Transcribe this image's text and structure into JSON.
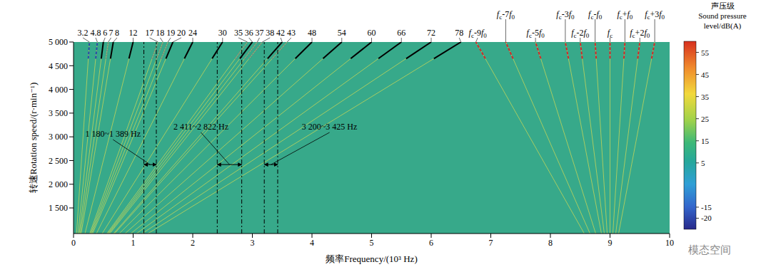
{
  "chart_data": {
    "type": "line",
    "x_label": "频率Frequency/(10³ Hz)",
    "y_label": "转速Rotation speed/(r·min⁻¹)",
    "xlim": [
      0,
      10
    ],
    "xticks": [
      0,
      1,
      2,
      3,
      4,
      5,
      6,
      7,
      8,
      9,
      10
    ],
    "ylim": [
      960,
      5000
    ],
    "yticks": [
      {
        "value": 1500,
        "label": "1 500"
      },
      {
        "value": 2000,
        "label": "2 000"
      },
      {
        "value": 2500,
        "label": "2 500"
      },
      {
        "value": 3000,
        "label": "3 000"
      },
      {
        "value": 3500,
        "label": "3 500"
      },
      {
        "value": 4000,
        "label": "4 000"
      },
      {
        "value": 4500,
        "label": "4 500"
      },
      {
        "value": 5000,
        "label": "5 000"
      }
    ],
    "grid": false,
    "series": [
      {
        "name": "3.2",
        "color": "#2b4ba8",
        "line_style": "dashed",
        "x": [
          0.051,
          0.248,
          0.267
        ],
        "values": [
          960,
          4650,
          5000
        ]
      },
      {
        "name": "4.8",
        "color": "#2b4ba8",
        "line_style": "dashed",
        "x": [
          0.077,
          0.372,
          0.4
        ],
        "values": [
          960,
          4650,
          5000
        ]
      },
      {
        "name": "6",
        "color": "#000000",
        "line_style": "solid",
        "x": [
          0.096,
          0.465,
          0.5
        ],
        "values": [
          960,
          4650,
          5000
        ]
      },
      {
        "name": "7",
        "color": "#7f7f7f",
        "line_style": "dotted",
        "x": [
          0.112,
          0.543,
          0.583
        ],
        "values": [
          960,
          4650,
          5000
        ]
      },
      {
        "name": "8",
        "color": "#000000",
        "line_style": "solid",
        "x": [
          0.128,
          0.62,
          0.667
        ],
        "values": [
          960,
          4650,
          5000
        ]
      },
      {
        "name": "12",
        "color": "#000000",
        "line_style": "solid",
        "x": [
          0.192,
          0.93,
          1.0
        ],
        "values": [
          960,
          4650,
          5000
        ]
      },
      {
        "name": "17",
        "color": "#7f7f7f",
        "line_style": "dotted",
        "x": [
          0.272,
          1.318,
          1.417
        ],
        "values": [
          960,
          4650,
          5000
        ]
      },
      {
        "name": "18",
        "color": "#7f7f7f",
        "line_style": "dotted",
        "x": [
          0.288,
          1.395,
          1.5
        ],
        "values": [
          960,
          4650,
          5000
        ]
      },
      {
        "name": "19",
        "color": "#7f7f7f",
        "line_style": "dotted",
        "x": [
          0.304,
          1.473,
          1.583
        ],
        "values": [
          960,
          4650,
          5000
        ]
      },
      {
        "name": "20",
        "color": "#000000",
        "line_style": "solid",
        "x": [
          0.32,
          1.55,
          1.667
        ],
        "values": [
          960,
          4650,
          5000
        ]
      },
      {
        "name": "24",
        "color": "#000000",
        "line_style": "solid",
        "x": [
          0.384,
          1.86,
          2.0
        ],
        "values": [
          960,
          4650,
          5000
        ]
      },
      {
        "name": "30",
        "color": "#000000",
        "line_style": "solid",
        "x": [
          0.48,
          2.325,
          2.5
        ],
        "values": [
          960,
          4650,
          5000
        ]
      },
      {
        "name": "35",
        "color": "#7f7f7f",
        "line_style": "dotted",
        "x": [
          0.56,
          2.713,
          2.917
        ],
        "values": [
          960,
          4650,
          5000
        ]
      },
      {
        "name": "36",
        "color": "#000000",
        "line_style": "solid",
        "x": [
          0.576,
          2.79,
          3.0
        ],
        "values": [
          960,
          4650,
          5000
        ]
      },
      {
        "name": "37",
        "color": "#7f7f7f",
        "line_style": "dotted",
        "x": [
          0.592,
          2.868,
          3.083
        ],
        "values": [
          960,
          4650,
          5000
        ]
      },
      {
        "name": "38",
        "color": "#7f7f7f",
        "line_style": "dotted",
        "x": [
          0.608,
          2.945,
          3.167
        ],
        "values": [
          960,
          4650,
          5000
        ]
      },
      {
        "name": "42",
        "color": "#000000",
        "line_style": "solid",
        "x": [
          0.672,
          3.255,
          3.5
        ],
        "values": [
          960,
          4650,
          5000
        ]
      },
      {
        "name": "43",
        "color": "#7f7f7f",
        "line_style": "dotted",
        "x": [
          0.688,
          3.333,
          3.583
        ],
        "values": [
          960,
          4650,
          5000
        ]
      },
      {
        "name": "48",
        "color": "#000000",
        "line_style": "solid",
        "x": [
          0.768,
          3.72,
          4.0
        ],
        "values": [
          960,
          4650,
          5000
        ]
      },
      {
        "name": "54",
        "color": "#000000",
        "line_style": "solid",
        "x": [
          0.864,
          4.185,
          4.5
        ],
        "values": [
          960,
          4650,
          5000
        ]
      },
      {
        "name": "60",
        "color": "#000000",
        "line_style": "solid",
        "x": [
          0.96,
          4.65,
          5.0
        ],
        "values": [
          960,
          4650,
          5000
        ]
      },
      {
        "name": "66",
        "color": "#000000",
        "line_style": "solid",
        "x": [
          1.056,
          5.115,
          5.5
        ],
        "values": [
          960,
          4650,
          5000
        ]
      },
      {
        "name": "72",
        "color": "#000000",
        "line_style": "solid",
        "x": [
          1.152,
          5.58,
          6.0
        ],
        "values": [
          960,
          4650,
          5000
        ]
      },
      {
        "name": "78",
        "color": "#000000",
        "line_style": "solid",
        "x": [
          1.248,
          6.045,
          6.5
        ],
        "values": [
          960,
          4650,
          5000
        ]
      },
      {
        "name": "fc-9f0",
        "color": "#d62728",
        "line_style": "dashed",
        "x": [
          8.568,
          6.908,
          6.75
        ],
        "values": [
          960,
          4650,
          5000
        ]
      },
      {
        "name": "fc-7f0",
        "color": "#d62728",
        "line_style": "dashed",
        "x": [
          8.664,
          7.373,
          7.25
        ],
        "values": [
          960,
          4650,
          5000
        ]
      },
      {
        "name": "fc-5f0",
        "color": "#d62728",
        "line_style": "dashed",
        "x": [
          8.76,
          7.838,
          7.75
        ],
        "values": [
          960,
          4650,
          5000
        ]
      },
      {
        "name": "fc-3f0",
        "color": "#d62728",
        "line_style": "dashed",
        "x": [
          8.856,
          8.303,
          8.25
        ],
        "values": [
          960,
          4650,
          5000
        ]
      },
      {
        "name": "fc-2f0",
        "color": "#d62728",
        "line_style": "dashed",
        "x": [
          8.904,
          8.535,
          8.5
        ],
        "values": [
          960,
          4650,
          5000
        ]
      },
      {
        "name": "fc-f0",
        "color": "#d62728",
        "line_style": "dashed",
        "x": [
          8.952,
          8.768,
          8.75
        ],
        "values": [
          960,
          4650,
          5000
        ]
      },
      {
        "name": "fc",
        "color": "#d62728",
        "line_style": "dashed",
        "x": [
          9.0,
          9.0,
          9.0
        ],
        "values": [
          960,
          4650,
          5000
        ]
      },
      {
        "name": "fc+f0",
        "color": "#d62728",
        "line_style": "dashed",
        "x": [
          9.048,
          9.233,
          9.25
        ],
        "values": [
          960,
          4650,
          5000
        ]
      },
      {
        "name": "fc+2f0",
        "color": "#d62728",
        "line_style": "dashed",
        "x": [
          9.096,
          9.465,
          9.5
        ],
        "values": [
          960,
          4650,
          5000
        ]
      },
      {
        "name": "fc+3f0",
        "color": "#d62728",
        "line_style": "dashed",
        "x": [
          9.144,
          9.698,
          9.75
        ],
        "values": [
          960,
          4650,
          5000
        ]
      }
    ],
    "annotations": [
      {
        "text": "1 180~1 389 Hz",
        "x": [
          1.18,
          1.389
        ]
      },
      {
        "text": "2 411~2 822 Hz",
        "x": [
          2.411,
          2.822
        ]
      },
      {
        "text": "3 200~3 425 Hz",
        "x": [
          3.2,
          3.425
        ]
      }
    ],
    "colorbar": {
      "label": [
        "声压级",
        "Sound pressure",
        "level/dB(A)"
      ],
      "range": [
        -25,
        60
      ],
      "ticks": [
        -20,
        -15,
        5,
        15,
        25,
        35,
        45,
        55
      ]
    },
    "watermark": "模态空间"
  }
}
